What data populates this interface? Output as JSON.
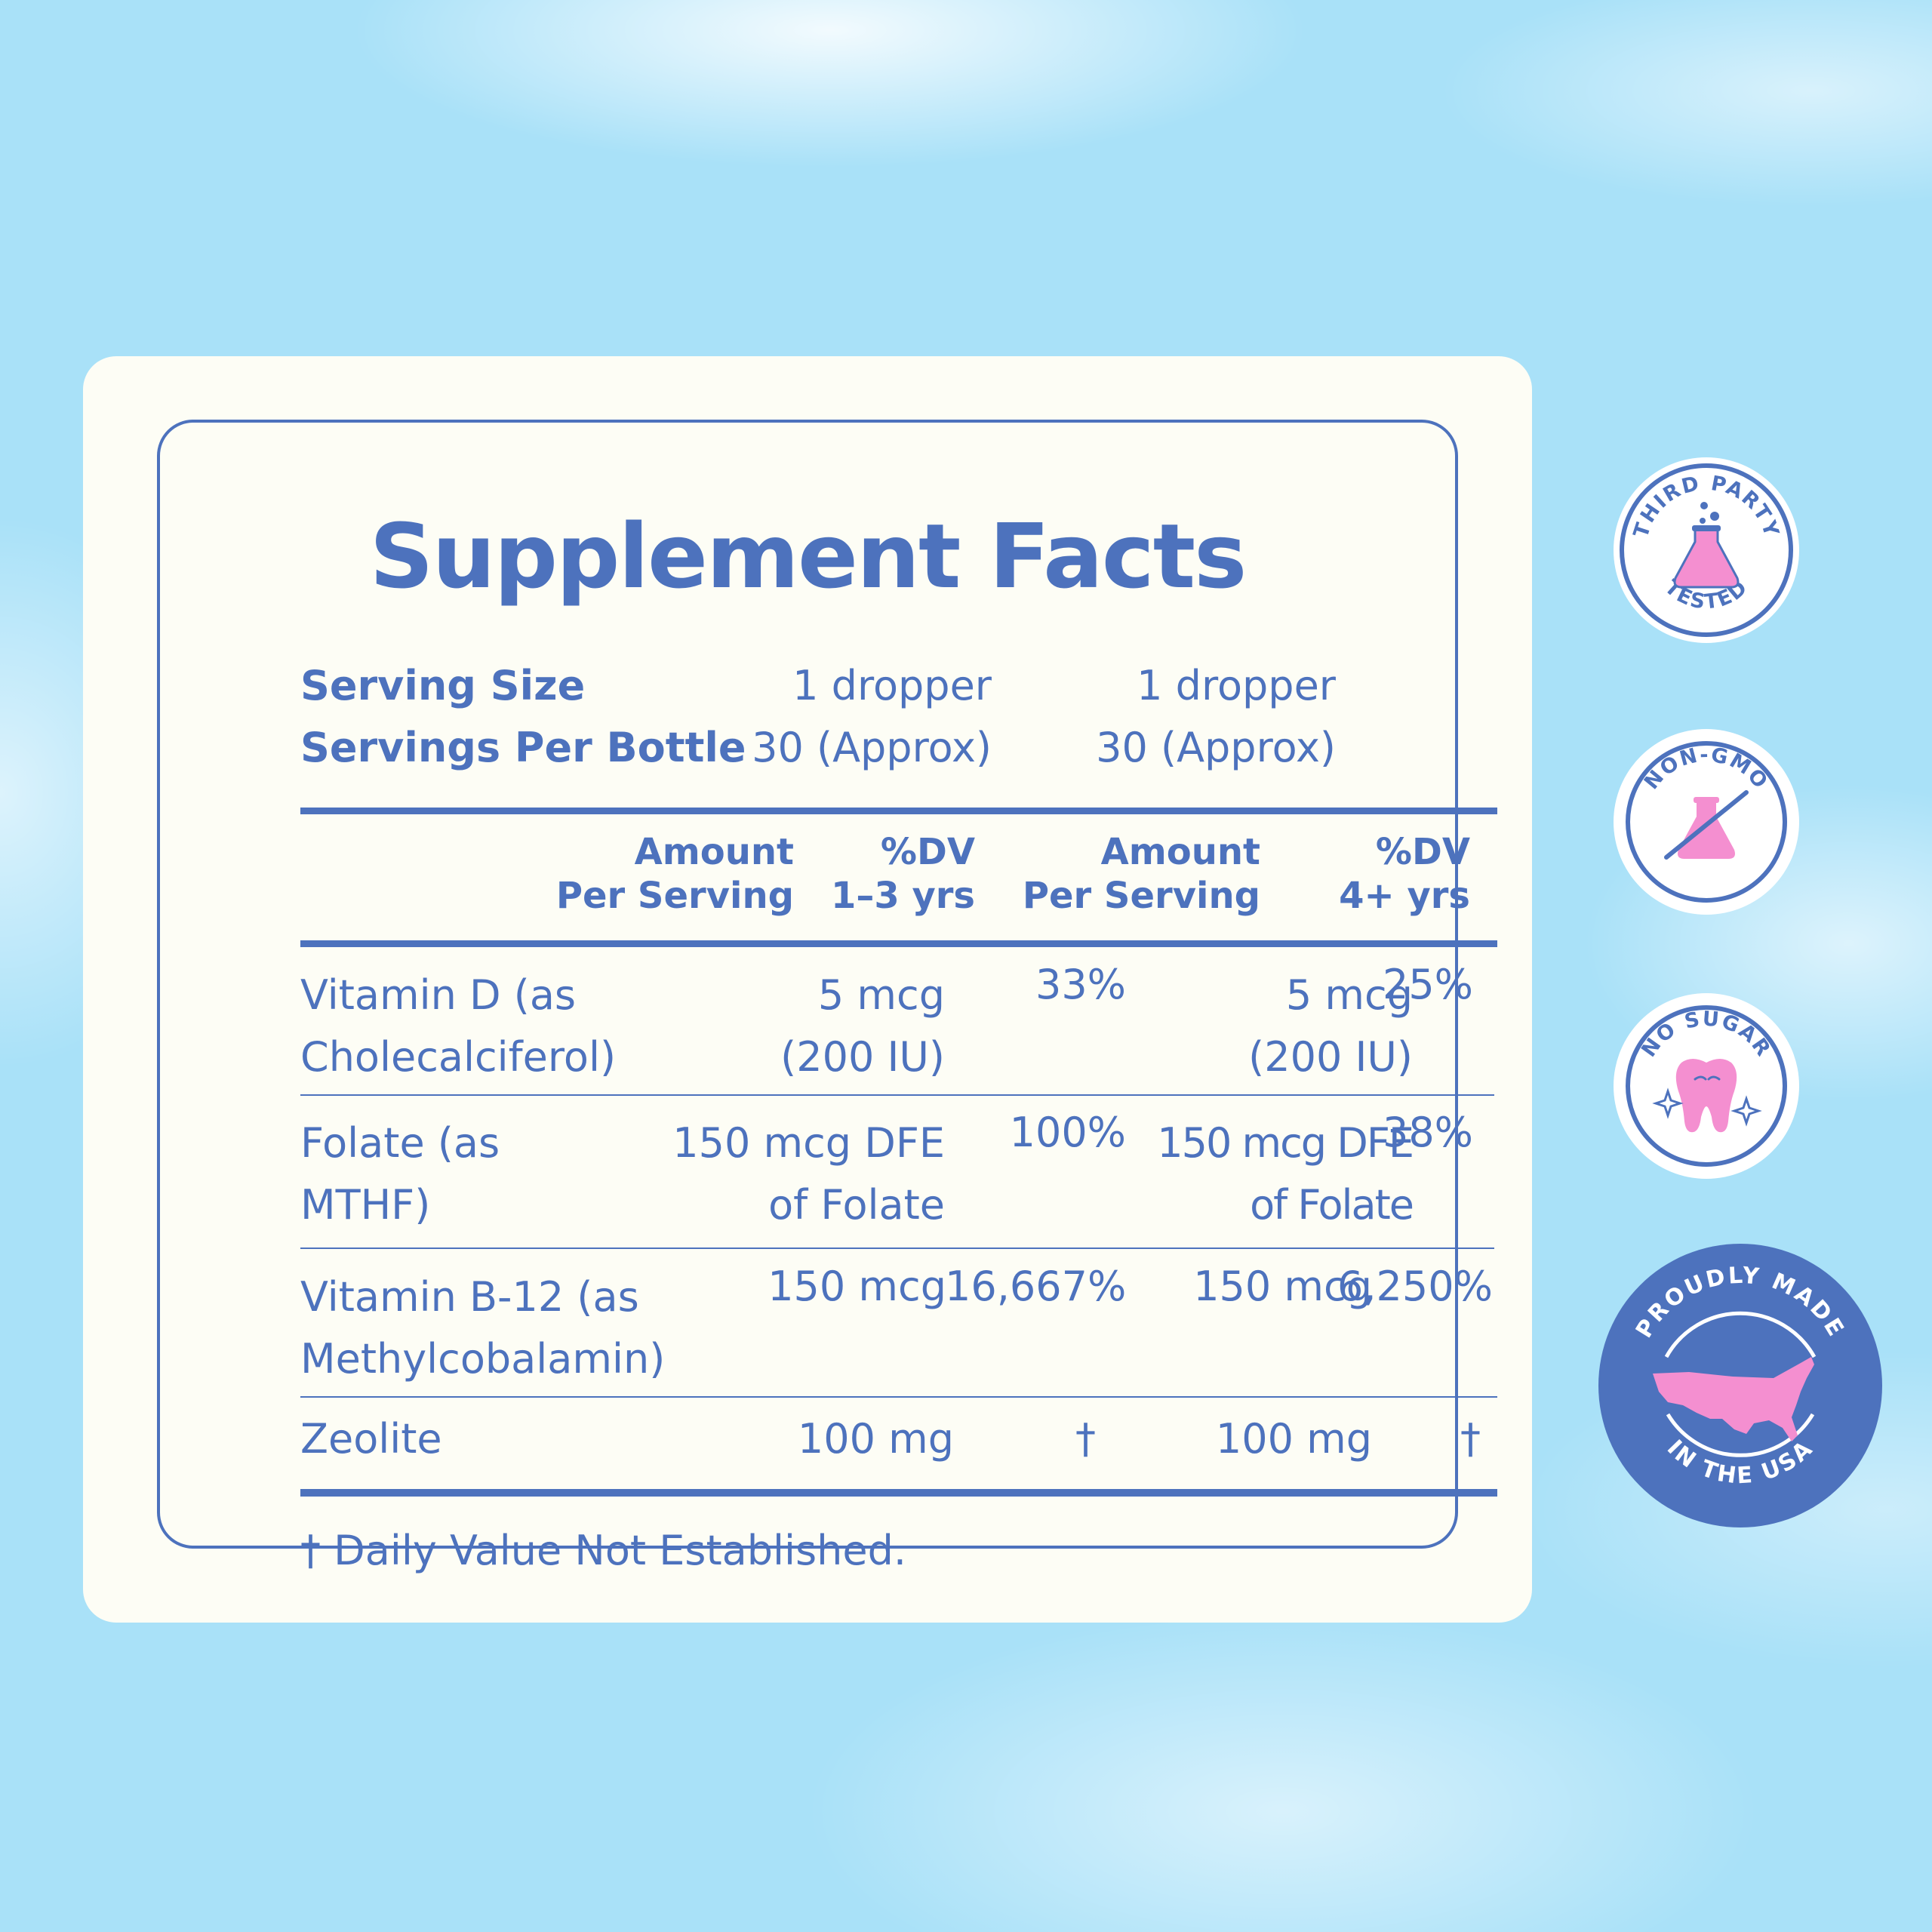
{
  "title": "Supplement Facts",
  "serving": {
    "size_label": "Serving Size",
    "size_child": "1 dropper",
    "size_adult": "1 dropper",
    "per_bottle_label": "Servings Per Bottle",
    "per_bottle_child": "30 (Approx)",
    "per_bottle_adult": "30 (Approx)"
  },
  "headers": {
    "amount_child_1": "Amount",
    "amount_child_2": "Per Serving",
    "dv_child_1": "%DV",
    "dv_child_2": "1–3 yrs",
    "amount_adult_1": "Amount",
    "amount_adult_2": "Per Serving",
    "dv_adult_1": "%DV",
    "dv_adult_2": "4+ yrs"
  },
  "rows": [
    {
      "name_1": "Vitamin D (as",
      "name_2": "Cholecalciferol)",
      "amt_child_1": "5 mcg",
      "amt_child_2": "(200 IU)",
      "dv_child": "33%",
      "amt_adult_1": "5 mcg",
      "amt_adult_2": "(200 IU)",
      "dv_adult": "25%"
    },
    {
      "name_1": "Folate (as",
      "name_2": "MTHF)",
      "amt_child_1": "150 mcg DFE",
      "amt_child_2": "of Folate",
      "dv_child": "100%",
      "amt_adult_1": "150 mcg DFE",
      "amt_adult_2": "of Folate",
      "dv_adult": "38%"
    },
    {
      "name_1": "Vitamin B-12 (as",
      "name_2": "Methylcobalamin)",
      "amt_child_1": "150 mcg",
      "dv_child": "16,667%",
      "amt_adult_1": "150 mcg",
      "dv_adult": "6,250%"
    },
    {
      "name_1": "Zeolite",
      "amt_child_1": "100 mg",
      "dv_child": "†",
      "amt_adult_1": "100 mg",
      "dv_adult": "†"
    }
  ],
  "footnote": "† Daily Value Not Established.",
  "badges": {
    "third_party_top": "THIRD PARTY",
    "third_party_bottom": "TESTED",
    "non_gmo": "NON-GMO",
    "no_sugar": "NO SUGAR",
    "usa_top": "PROUDLY MADE",
    "usa_bottom": "IN THE USA"
  },
  "colors": {
    "primary_blue": "#4d72bd",
    "accent_pink": "#f48fd0",
    "card": "#fdfdf5",
    "sky": "#a9e1f8"
  },
  "icons": [
    "flask-icon",
    "crossed-flask-icon",
    "tooth-icon",
    "usa-map-icon",
    "sparkle-icon"
  ]
}
